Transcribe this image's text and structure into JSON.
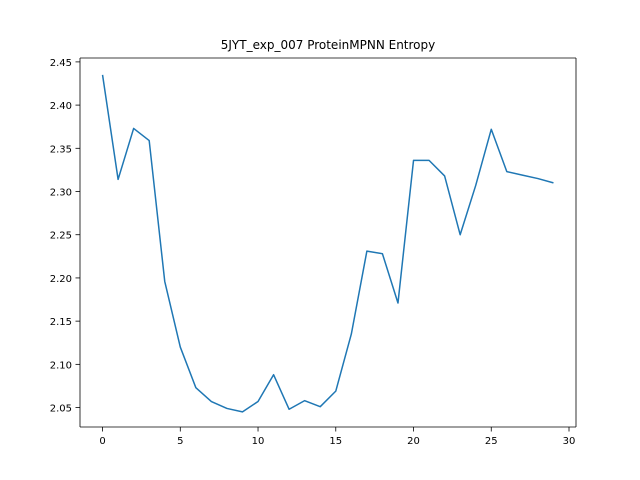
{
  "chart_data": {
    "type": "line",
    "title": "5JYT_exp_007 ProteinMPNN Entropy",
    "xlabel": "",
    "ylabel": "",
    "xlim": [
      -1.45,
      30.45
    ],
    "ylim": [
      2.0275,
      2.4545
    ],
    "xticks": [
      0,
      5,
      10,
      15,
      20,
      25,
      30
    ],
    "xtick_labels": [
      "0",
      "5",
      "10",
      "15",
      "20",
      "25",
      "30"
    ],
    "yticks": [
      2.05,
      2.1,
      2.15,
      2.2,
      2.25,
      2.3,
      2.35,
      2.4,
      2.45
    ],
    "ytick_labels": [
      "2.05",
      "2.10",
      "2.15",
      "2.20",
      "2.25",
      "2.30",
      "2.35",
      "2.40",
      "2.45"
    ],
    "grid": false,
    "legend": "none",
    "series": [
      {
        "color": "#1f77b4",
        "x": [
          0,
          1,
          2,
          3,
          4,
          5,
          6,
          7,
          8,
          9,
          10,
          11,
          12,
          13,
          14,
          15,
          16,
          17,
          18,
          19,
          20,
          21,
          22,
          23,
          24,
          25,
          26,
          27,
          28,
          29
        ],
        "y": [
          2.435,
          2.314,
          2.373,
          2.359,
          2.196,
          2.12,
          2.073,
          2.057,
          2.049,
          2.045,
          2.057,
          2.088,
          2.048,
          2.058,
          2.051,
          2.069,
          2.135,
          2.231,
          2.228,
          2.171,
          2.336,
          2.336,
          2.318,
          2.25,
          2.307,
          2.372,
          2.323,
          2.319,
          2.315,
          2.31
        ]
      }
    ]
  }
}
